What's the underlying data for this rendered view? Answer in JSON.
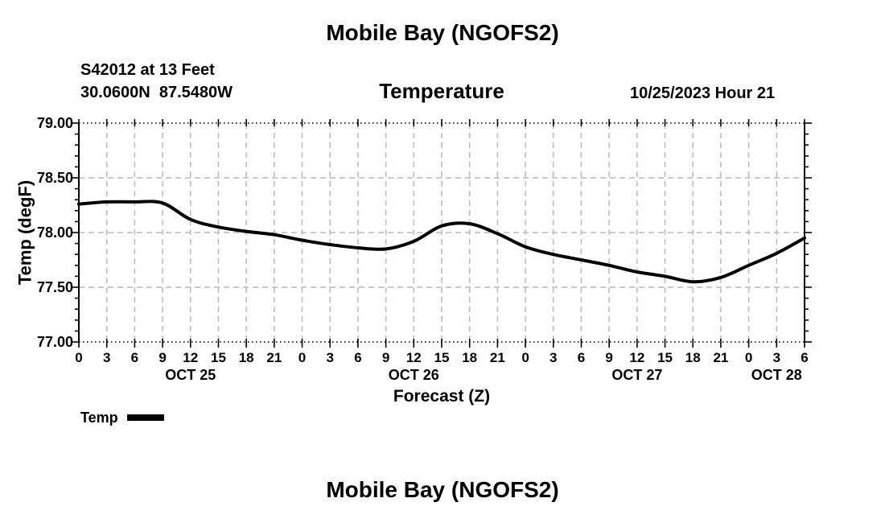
{
  "page": {
    "top_title": "Mobile Bay (NGOFS2)",
    "bottom_title": "Mobile Bay (NGOFS2)"
  },
  "header": {
    "station_line1": "S42012 at 13 Feet",
    "station_line2": "30.0600N  87.5480W",
    "subtitle": "Temperature",
    "datetime": "10/25/2023 Hour 21"
  },
  "legend": {
    "label": "Temp",
    "swatch_color": "#000000"
  },
  "chart_data": {
    "type": "line",
    "title": "Temperature",
    "xlabel": "Forecast (Z)",
    "ylabel": "Temp (degF)",
    "xlim_hours": [
      0,
      78
    ],
    "ylim": [
      77.0,
      79.0
    ],
    "y_ticks": [
      77.0,
      77.5,
      78.0,
      78.5,
      79.0
    ],
    "y_tick_labels": [
      "77.00",
      "77.50",
      "78.00",
      "78.50",
      "79.00"
    ],
    "y_minor_step": 0.1,
    "grid": true,
    "x_hours": [
      0,
      3,
      6,
      9,
      12,
      15,
      18,
      21,
      24,
      27,
      30,
      33,
      36,
      39,
      42,
      45,
      48,
      51,
      54,
      57,
      60,
      63,
      66,
      69,
      72,
      75,
      78
    ],
    "x_tick_labels": [
      "0",
      "3",
      "6",
      "9",
      "12",
      "15",
      "18",
      "21",
      "0",
      "3",
      "6",
      "9",
      "12",
      "15",
      "18",
      "21",
      "0",
      "3",
      "6",
      "9",
      "12",
      "15",
      "18",
      "21",
      "0",
      "3",
      "6"
    ],
    "day_labels": [
      {
        "label": "OCT 25",
        "hour": 12
      },
      {
        "label": "OCT 26",
        "hour": 36
      },
      {
        "label": "OCT 27",
        "hour": 60
      },
      {
        "label": "OCT 28",
        "hour": 75
      }
    ],
    "series": [
      {
        "name": "Temp",
        "color": "#000000",
        "values": [
          78.26,
          78.28,
          78.28,
          78.27,
          78.12,
          78.05,
          78.01,
          77.98,
          77.93,
          77.89,
          77.86,
          77.85,
          77.92,
          78.06,
          78.08,
          77.99,
          77.87,
          77.8,
          77.75,
          77.7,
          77.64,
          77.6,
          77.55,
          77.59,
          77.7,
          77.81,
          77.95
        ]
      }
    ],
    "colors": {
      "grid": "#b9b9b9",
      "axis": "#000000",
      "background": "#ffffff"
    }
  }
}
